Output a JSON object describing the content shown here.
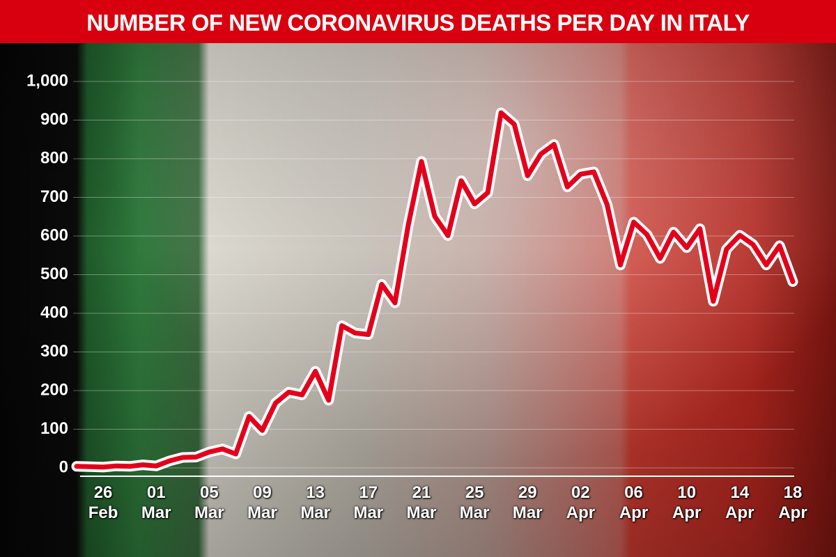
{
  "chart_data": {
    "type": "line",
    "title": "NUMBER OF NEW CORONAVIRUS DEATHS PER DAY IN ITALY",
    "categories": [
      null,
      null,
      "26 Feb",
      null,
      null,
      null,
      "01 Mar",
      null,
      null,
      null,
      "05 Mar",
      null,
      null,
      null,
      "09 Mar",
      null,
      null,
      null,
      "13 Mar",
      null,
      null,
      null,
      "17 Mar",
      null,
      null,
      null,
      "21 Mar",
      null,
      null,
      null,
      "25 Mar",
      null,
      null,
      null,
      "29 Mar",
      null,
      null,
      null,
      "02 Apr",
      null,
      null,
      null,
      "06 Apr",
      null,
      null,
      null,
      "10 Apr",
      null,
      null,
      null,
      "14 Apr",
      null,
      null,
      null,
      "18 Apr"
    ],
    "series": [
      {
        "color": "#e4001b",
        "values": [
          4,
          3,
          2,
          5,
          4,
          8,
          5,
          18,
          27,
          28,
          41,
          49,
          36,
          133,
          97,
          168,
          196,
          189,
          250,
          175,
          368,
          349,
          345,
          475,
          427,
          627,
          793,
          651,
          601,
          743,
          683,
          712,
          919,
          889,
          756,
          812,
          837,
          727,
          760,
          766,
          681,
          525,
          636,
          604,
          542,
          610,
          570,
          619,
          431,
          566,
          602,
          578,
          525,
          575,
          482
        ]
      }
    ],
    "ylim": [
      0,
      1000
    ],
    "yticks": [
      0,
      100,
      200,
      300,
      400,
      500,
      600,
      700,
      800,
      900,
      {
        "value": 1000,
        "label": "1,000"
      }
    ],
    "grid": true
  }
}
